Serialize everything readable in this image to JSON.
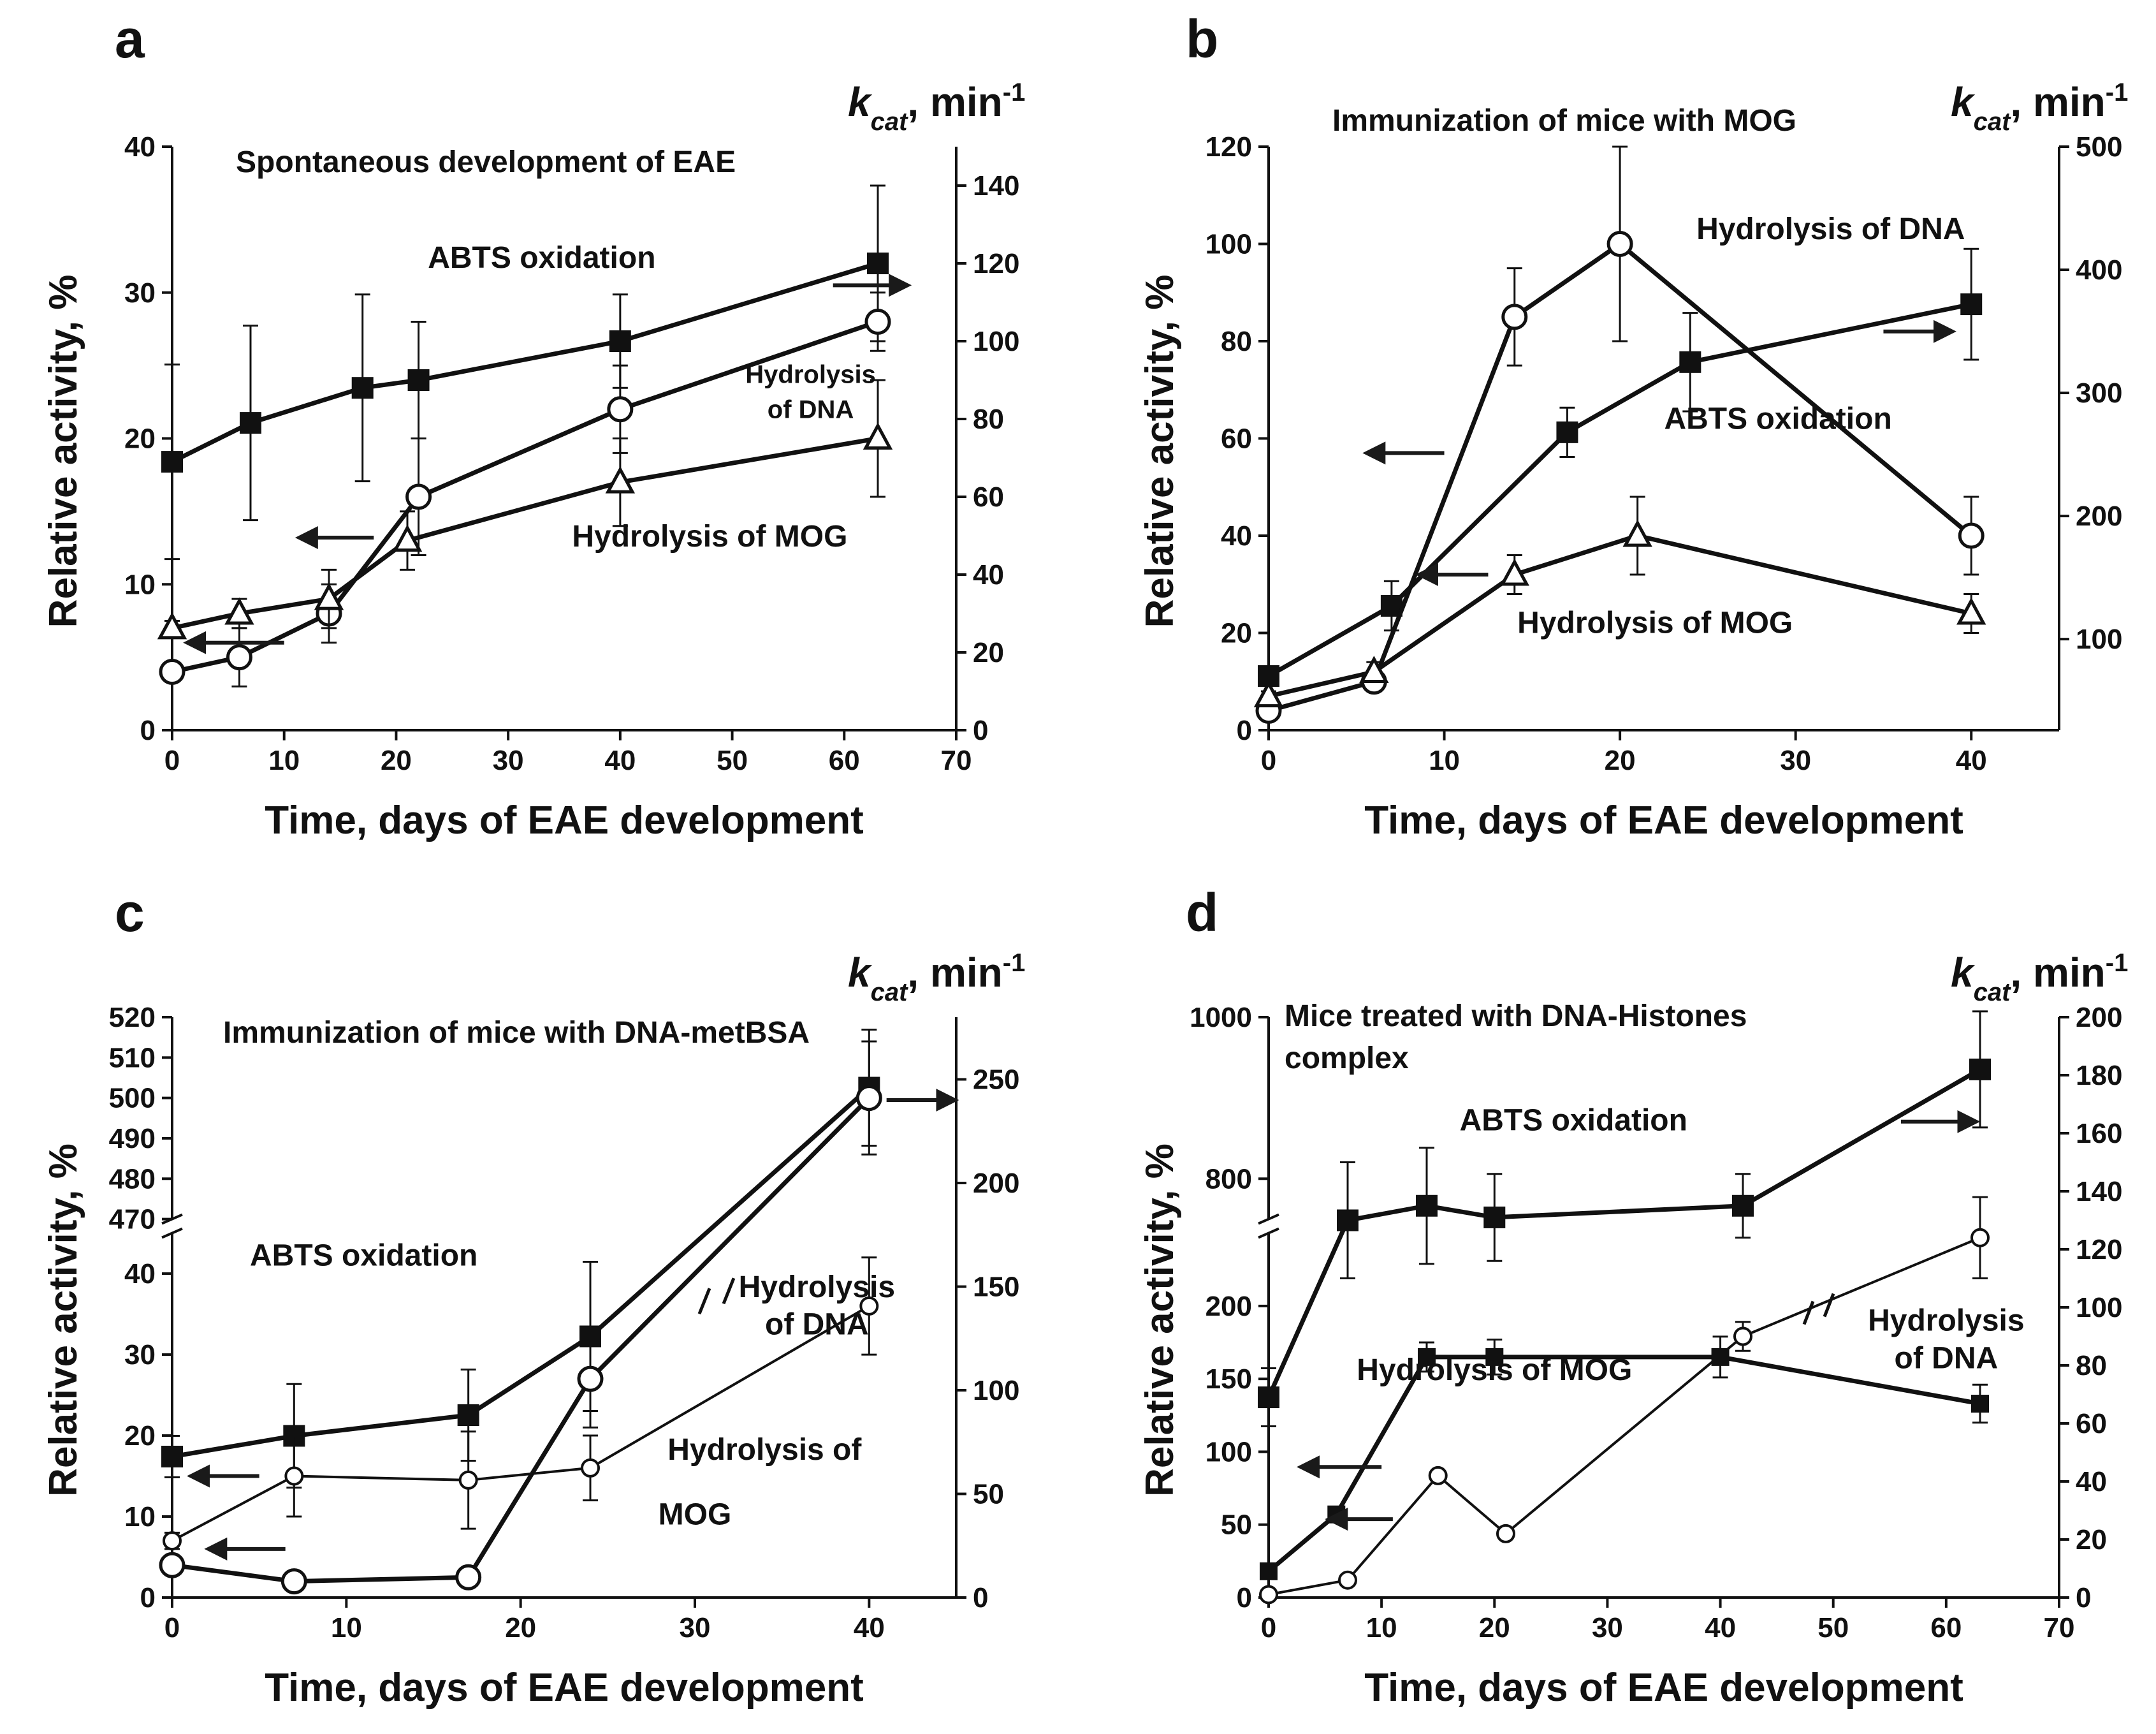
{
  "figure": {
    "panel_labels": [
      "a",
      "b",
      "c",
      "d"
    ]
  },
  "chart_data": [
    {
      "id": "a",
      "type": "line",
      "title": "Spontaneous development of EAE",
      "xlabel": "Time, days of EAE development",
      "ylabel": "Relative activity, %",
      "y2label_main": "k",
      "y2label_sub": "cat",
      "y2label_unit": ", min",
      "y2label_sup": "-1",
      "xlim": [
        0,
        70
      ],
      "ylim": [
        0,
        40
      ],
      "y2lim": [
        0,
        150
      ],
      "xticks": [
        0,
        10,
        20,
        30,
        40,
        50,
        60,
        70
      ],
      "yticks": [
        0,
        10,
        20,
        30,
        40
      ],
      "y2ticks": [
        0,
        20,
        40,
        60,
        80,
        100,
        120,
        140
      ],
      "annotations": [
        {
          "text": "ABTS oxidation",
          "x": 33,
          "y": 31.7
        },
        {
          "text": "Hydrolysis",
          "x": 57,
          "y": 23.8
        },
        {
          "text": "of DNA",
          "x": 57,
          "y": 21.4
        },
        {
          "text": "Hydrolysis of MOG",
          "x": 48,
          "y": 12.6
        }
      ],
      "arrows": [
        {
          "dir": "right",
          "x1": 59,
          "x2": 65,
          "y": 30.5
        },
        {
          "dir": "left",
          "x1": 18,
          "x2": 12,
          "y": 13.2
        },
        {
          "dir": "left",
          "x1": 10,
          "x2": 2,
          "y": 6.0
        }
      ],
      "series": [
        {
          "name": "ABTS oxidation",
          "axis": "right",
          "marker": "filled-square",
          "x": [
            0,
            7,
            17,
            22,
            40,
            63
          ],
          "y": [
            69,
            79,
            88,
            90,
            100,
            120
          ],
          "err": [
            25,
            25,
            24,
            15,
            12,
            20
          ]
        },
        {
          "name": "Hydrolysis of DNA",
          "axis": "left",
          "marker": "open-circle",
          "x": [
            0,
            6,
            14,
            22,
            40,
            63
          ],
          "y": [
            4,
            5,
            8,
            16,
            22,
            28
          ],
          "err": [
            0.5,
            2,
            2,
            4,
            3,
            2
          ]
        },
        {
          "name": "Hydrolysis of MOG",
          "axis": "left",
          "marker": "open-triangle",
          "x": [
            0,
            6,
            14,
            21,
            40,
            63
          ],
          "y": [
            7,
            8,
            9,
            13,
            17,
            20
          ],
          "err": [
            0.5,
            1,
            2,
            2,
            3,
            4
          ]
        }
      ]
    },
    {
      "id": "b",
      "type": "line",
      "title": "Immunization of mice with MOG",
      "xlabel": "Time, days of EAE development",
      "ylabel": "Relative activity, %",
      "y2label_main": "k",
      "y2label_sub": "cat",
      "y2label_unit": ", min",
      "y2label_sup": "-1",
      "xlim": [
        0,
        45
      ],
      "ylim": [
        0,
        120
      ],
      "y2lim": [
        26,
        500
      ],
      "xticks": [
        0,
        10,
        20,
        30,
        40
      ],
      "yticks": [
        0,
        20,
        40,
        60,
        80,
        100,
        120
      ],
      "y2ticks": [
        100,
        200,
        300,
        400,
        500
      ],
      "annotations": [
        {
          "text": "Hydrolysis of DNA",
          "x": 32,
          "y": 101
        },
        {
          "text": "ABTS oxidation",
          "x": 29,
          "y": 62
        },
        {
          "text": "Hydrolysis of MOG",
          "x": 22,
          "y": 20
        }
      ],
      "arrows": [
        {
          "dir": "right",
          "x1": 35,
          "x2": 38.5,
          "y": 82
        },
        {
          "dir": "left",
          "x1": 10,
          "x2": 6,
          "y": 57
        },
        {
          "dir": "left",
          "x1": 12.5,
          "x2": 9,
          "y": 32
        }
      ],
      "series": [
        {
          "name": "ABTS oxidation",
          "axis": "right",
          "marker": "filled-square",
          "x": [
            0,
            7,
            17,
            24,
            40
          ],
          "y": [
            70,
            127,
            268,
            325,
            372
          ],
          "err": [
            5,
            20,
            20,
            40,
            45
          ]
        },
        {
          "name": "Hydrolysis of DNA",
          "axis": "left",
          "marker": "open-circle",
          "x": [
            0,
            6,
            14,
            20,
            40
          ],
          "y": [
            4,
            10,
            85,
            100,
            40
          ],
          "err": [
            1,
            2,
            10,
            20,
            8
          ]
        },
        {
          "name": "Hydrolysis of MOG",
          "axis": "left",
          "marker": "open-triangle",
          "x": [
            0,
            6,
            14,
            21,
            40
          ],
          "y": [
            7,
            12,
            32,
            40,
            24
          ],
          "err": [
            1,
            2,
            4,
            8,
            4
          ]
        }
      ]
    },
    {
      "id": "c",
      "type": "line",
      "title": "Immunization of mice with DNA-metBSA",
      "xlabel": "Time, days of EAE development",
      "ylabel": "Relative activity, %",
      "y2label_main": "k",
      "y2label_sub": "cat",
      "y2label_unit": ", min",
      "y2label_sup": "-1",
      "xlim": [
        0,
        45
      ],
      "y_broken": true,
      "ylim_lower": [
        0,
        45
      ],
      "ylim_upper": [
        470,
        520
      ],
      "y2lim": [
        0,
        280
      ],
      "xticks": [
        0,
        10,
        20,
        30,
        40
      ],
      "yticks_lower": [
        0,
        10,
        20,
        30,
        40
      ],
      "yticks_upper": [
        470,
        480,
        490,
        500,
        510,
        520
      ],
      "y2ticks": [
        0,
        50,
        100,
        150,
        200,
        250
      ],
      "annotations": [
        {
          "text": "Hydrolysis",
          "x": 37,
          "y2": 145
        },
        {
          "text": "of DNA",
          "x": 37,
          "y2": 127
        },
        {
          "text": "ABTS oxidation",
          "x": 11,
          "y": 41
        },
        {
          "text": "Hydrolysis of",
          "x": 34,
          "y": 17
        },
        {
          "text": "MOG",
          "x": 30,
          "y": 9
        }
      ],
      "arrows": [
        {
          "dir": "right",
          "x1": 41,
          "x2": 44.5,
          "y2": 240
        },
        {
          "dir": "left",
          "x1": 5,
          "x2": 1.5,
          "y": 15
        },
        {
          "dir": "left",
          "x1": 6.5,
          "x2": 2.5,
          "y": 6
        }
      ],
      "series": [
        {
          "name": "ABTS oxidation",
          "axis": "right",
          "marker": "filled-square",
          "x": [
            0,
            7,
            17,
            24,
            40
          ],
          "y": [
            68,
            78,
            88,
            126,
            246
          ],
          "err": [
            10,
            25,
            22,
            36,
            28
          ]
        },
        {
          "name": "Hydrolysis of DNA",
          "axis": "left-broken",
          "marker": "open-circle",
          "x": [
            0,
            7,
            17,
            24,
            40
          ],
          "y": [
            4,
            2,
            2.5,
            27,
            500
          ],
          "err": [
            0.5,
            0.5,
            0.5,
            6,
            14
          ]
        },
        {
          "name": "Hydrolysis of MOG",
          "axis": "left-broken",
          "marker": "small-open-circle",
          "x": [
            0,
            7,
            17,
            24,
            40
          ],
          "y": [
            7,
            15,
            14.5,
            16,
            36
          ],
          "err": [
            1,
            5,
            6,
            4,
            6
          ]
        }
      ]
    },
    {
      "id": "d",
      "type": "line",
      "title_line1": "Mice treated with DNA-Histones",
      "title_line2": "complex",
      "xlabel": "Time, days of EAE development",
      "ylabel": "Relative activity, %",
      "y2label_main": "k",
      "y2label_sub": "cat",
      "y2label_unit": ", min",
      "y2label_sup": "-1",
      "xlim": [
        0,
        70
      ],
      "y_broken": true,
      "ylim_lower": [
        0,
        250
      ],
      "ylim_upper": [
        750,
        1000
      ],
      "y2lim": [
        0,
        200
      ],
      "xticks": [
        0,
        10,
        20,
        30,
        40,
        50,
        60,
        70
      ],
      "yticks_lower": [
        0,
        50,
        100,
        150,
        200
      ],
      "yticks_upper": [
        800,
        1000
      ],
      "y2ticks": [
        0,
        20,
        40,
        60,
        80,
        100,
        120,
        140,
        160,
        180,
        200
      ],
      "annotations": [
        {
          "text": "ABTS oxidation",
          "x": 27,
          "y2": 161
        },
        {
          "text": "Hydrolysis of MOG",
          "x": 20,
          "y2": 75
        },
        {
          "text": "Hydrolysis",
          "x": 60,
          "y2": 92
        },
        {
          "text": "of DNA",
          "x": 60,
          "y2": 79
        }
      ],
      "arrows": [
        {
          "dir": "right",
          "x1": 56,
          "x2": 62,
          "y2": 164
        },
        {
          "dir": "left",
          "x1": 10,
          "x2": 3.5,
          "y2": 45
        },
        {
          "dir": "left",
          "x1": 11,
          "x2": 6,
          "y2": 27
        }
      ],
      "series": [
        {
          "name": "ABTS oxidation",
          "axis": "right",
          "marker": "filled-square",
          "x": [
            0,
            7,
            14,
            20,
            42,
            63
          ],
          "y": [
            69,
            130,
            135,
            131,
            135,
            182
          ],
          "err": [
            10,
            20,
            20,
            15,
            11,
            20
          ]
        },
        {
          "name": "Hydrolysis of DNA",
          "axis": "right",
          "marker": "small-open-circle",
          "x": [
            0,
            7,
            15,
            21,
            42,
            63
          ],
          "y": [
            1,
            6,
            42,
            22,
            90,
            124
          ],
          "err": [
            0,
            0,
            0,
            0,
            5,
            14
          ]
        },
        {
          "name": "Hydrolysis of MOG",
          "axis": "left-broken",
          "marker": "small-filled-square",
          "x": [
            0,
            6,
            14,
            20,
            40,
            63
          ],
          "y": [
            18,
            57,
            165,
            165,
            165,
            133
          ],
          "err": [
            5,
            5,
            10,
            12,
            14,
            13
          ]
        }
      ]
    }
  ]
}
